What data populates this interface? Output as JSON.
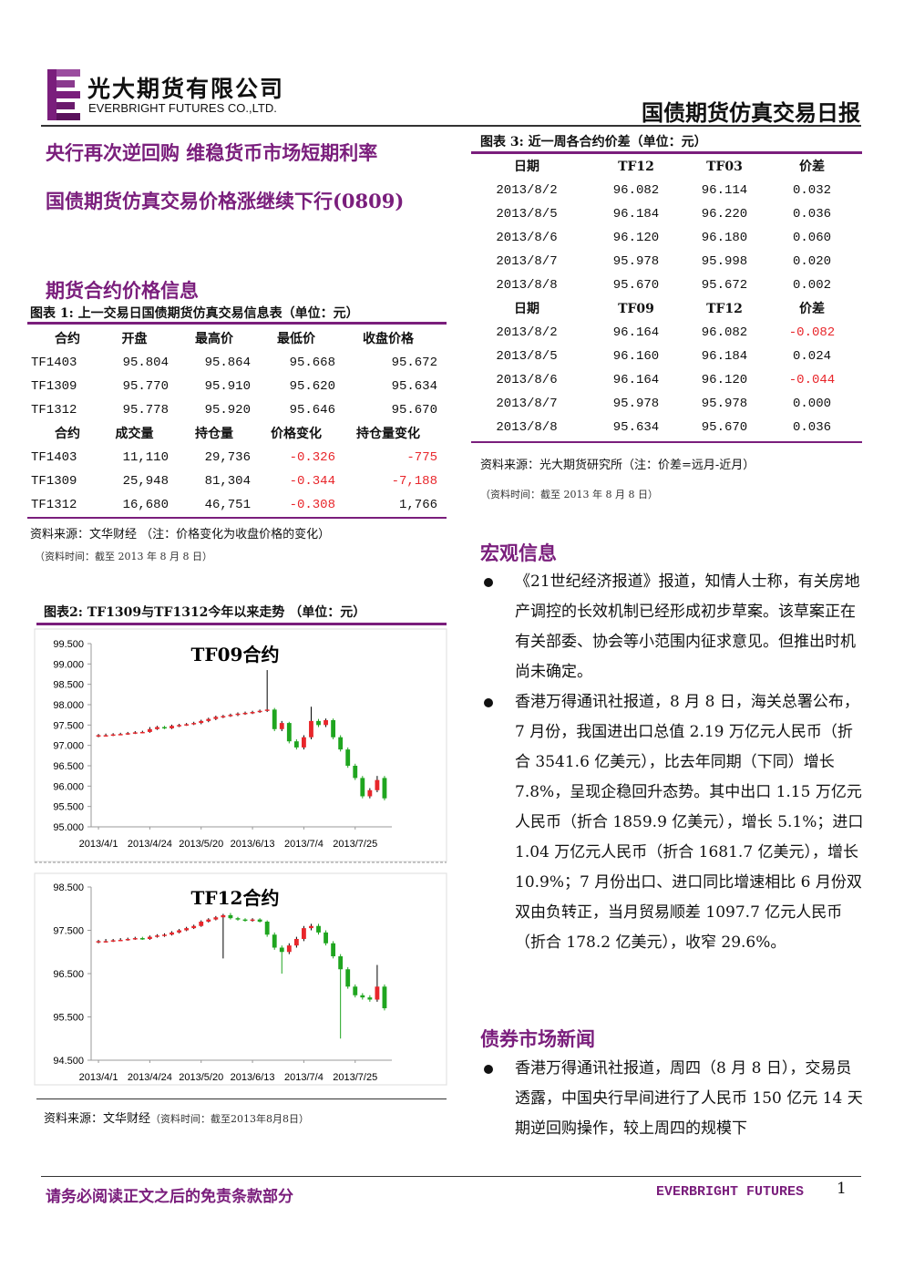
{
  "header": {
    "company_cn": "光大期货有限公司",
    "company_en": "EVERBRIGHT FUTURES CO.,LTD.",
    "report_title": "国债期货仿真交易日报"
  },
  "headlines": [
    "央行再次逆回购 维稳货币市场短期利率",
    "国债期货仿真交易价格涨继续下行(0809)"
  ],
  "section_futures": "期货合约价格信息",
  "table1": {
    "title": "图表 1: 上一交易日国债期货仿真交易信息表（单位：元）",
    "header1": [
      "合约",
      "开盘",
      "最高价",
      "最低价",
      "收盘价格"
    ],
    "rows1": [
      [
        "TF1403",
        "95.804",
        "95.864",
        "95.668",
        "95.672"
      ],
      [
        "TF1309",
        "95.770",
        "95.910",
        "95.620",
        "95.634"
      ],
      [
        "TF1312",
        "95.778",
        "95.920",
        "95.646",
        "95.670"
      ]
    ],
    "header2": [
      "合约",
      "成交量",
      "持仓量",
      "价格变化",
      "持仓量变化"
    ],
    "rows2": [
      [
        "TF1403",
        "11,110",
        "29,736",
        "-0.326",
        "-775"
      ],
      [
        "TF1309",
        "25,948",
        "81,304",
        "-0.344",
        "-7,188"
      ],
      [
        "TF1312",
        "16,680",
        "46,751",
        "-0.308",
        "1,766"
      ]
    ],
    "source": "资料来源：文华财经 （注：价格变化为收盘价格的变化）",
    "time": "（资料时间：截至 2013 年 8 月 8 日）"
  },
  "figure2": {
    "title": "图表2: TF1309与TF1312今年以来走势 （单位：元）",
    "source": "资料来源：文华财经",
    "time": "（资料时间：截至2013年8月8日）"
  },
  "chart_data": [
    {
      "type": "candlestick",
      "title": "TF09合约",
      "up_color": "#e8262b",
      "down_color": "#1fa51f",
      "xlim": [
        -1,
        40
      ],
      "ylim": [
        95,
        99.5
      ],
      "yticks": [
        {
          "value": 95,
          "label": "95.000"
        },
        {
          "value": 95.5,
          "label": "95.500"
        },
        {
          "value": 96,
          "label": "96.000"
        },
        {
          "value": 96.5,
          "label": "96.500"
        },
        {
          "value": 97,
          "label": "97.000"
        },
        {
          "value": 97.5,
          "label": "97.500"
        },
        {
          "value": 98,
          "label": "98.000"
        },
        {
          "value": 98.5,
          "label": "98.500"
        },
        {
          "value": 99,
          "label": "99.000"
        },
        {
          "value": 99.5,
          "label": "99.500"
        }
      ],
      "xticks": [
        {
          "value": 0,
          "label": "2013/4/1"
        },
        {
          "value": 7,
          "label": "2013/4/24"
        },
        {
          "value": 14,
          "label": "2013/5/20"
        },
        {
          "value": 21,
          "label": "2013/6/13"
        },
        {
          "value": 28,
          "label": "2013/7/4"
        },
        {
          "value": 35,
          "label": "2013/7/25"
        }
      ],
      "open": [
        97.22,
        97.25,
        97.25,
        97.27,
        97.28,
        97.3,
        97.32,
        97.33,
        97.4,
        97.45,
        97.42,
        97.48,
        97.5,
        97.52,
        97.55,
        97.6,
        97.65,
        97.7,
        97.72,
        97.75,
        97.78,
        97.8,
        97.82,
        97.85,
        97.88,
        97.4,
        97.55,
        97.1,
        96.95,
        97.2,
        97.6,
        97.5,
        97.62,
        97.2,
        96.9,
        96.5,
        96.2,
        95.75,
        95.9,
        96.2
      ],
      "high": [
        97.28,
        97.29,
        97.3,
        97.31,
        97.33,
        97.35,
        97.36,
        97.45,
        97.48,
        97.48,
        97.51,
        97.53,
        97.55,
        97.58,
        97.63,
        97.68,
        97.73,
        97.75,
        97.78,
        97.81,
        97.83,
        97.85,
        97.88,
        98.85,
        97.92,
        97.6,
        97.58,
        97.15,
        97.25,
        97.95,
        97.65,
        97.66,
        97.66,
        97.25,
        96.95,
        96.55,
        96.25,
        95.95,
        96.25,
        96.25
      ],
      "low": [
        97.2,
        97.22,
        97.23,
        97.25,
        97.26,
        97.28,
        97.3,
        97.31,
        97.38,
        97.4,
        97.4,
        97.45,
        97.48,
        97.5,
        97.52,
        97.57,
        97.62,
        97.67,
        97.7,
        97.72,
        97.75,
        97.77,
        97.8,
        97.82,
        97.35,
        97.35,
        97.05,
        96.9,
        96.9,
        97.15,
        97.45,
        97.45,
        97.15,
        96.85,
        96.45,
        96.15,
        95.7,
        95.7,
        95.85,
        95.65
      ],
      "close": [
        97.25,
        97.25,
        97.27,
        97.28,
        97.3,
        97.32,
        97.33,
        97.4,
        97.45,
        97.42,
        97.48,
        97.5,
        97.52,
        97.55,
        97.6,
        97.65,
        97.7,
        97.72,
        97.75,
        97.78,
        97.8,
        97.82,
        97.85,
        97.88,
        97.4,
        97.55,
        97.1,
        96.95,
        97.2,
        97.6,
        97.5,
        97.62,
        97.2,
        96.9,
        96.5,
        96.2,
        95.75,
        95.9,
        96.15,
        95.7
      ]
    },
    {
      "type": "candlestick",
      "title": "TF12合约",
      "up_color": "#e8262b",
      "down_color": "#1fa51f",
      "xlim": [
        -1,
        40
      ],
      "ylim": [
        94.5,
        98.5
      ],
      "yticks": [
        {
          "value": 94.5,
          "label": "94.500"
        },
        {
          "value": 95.5,
          "label": "95.500"
        },
        {
          "value": 96.5,
          "label": "96.500"
        },
        {
          "value": 97.5,
          "label": "97.500"
        },
        {
          "value": 98.5,
          "label": "98.500"
        }
      ],
      "xticks": [
        {
          "value": 0,
          "label": "2013/4/1"
        },
        {
          "value": 7,
          "label": "2013/4/24"
        },
        {
          "value": 14,
          "label": "2013/5/20"
        },
        {
          "value": 21,
          "label": "2013/6/13"
        },
        {
          "value": 28,
          "label": "2013/7/4"
        },
        {
          "value": 35,
          "label": "2013/7/25"
        }
      ],
      "open": [
        97.22,
        97.25,
        97.25,
        97.27,
        97.28,
        97.3,
        97.32,
        97.3,
        97.35,
        97.38,
        97.4,
        97.45,
        97.5,
        97.55,
        97.6,
        97.7,
        97.75,
        97.8,
        97.85,
        97.78,
        97.75,
        97.72,
        97.75,
        97.7,
        97.4,
        97.1,
        97.0,
        97.15,
        97.3,
        97.55,
        97.6,
        97.45,
        97.2,
        96.9,
        96.6,
        96.2,
        96.0,
        95.95,
        95.9,
        96.2
      ],
      "high": [
        97.28,
        97.3,
        97.3,
        97.32,
        97.33,
        97.35,
        97.35,
        97.38,
        97.41,
        97.43,
        97.48,
        97.53,
        97.58,
        97.63,
        97.73,
        97.78,
        97.83,
        97.88,
        97.9,
        97.81,
        97.78,
        97.78,
        97.78,
        97.73,
        97.45,
        97.15,
        97.2,
        97.35,
        97.6,
        97.65,
        97.65,
        97.5,
        97.25,
        96.95,
        96.65,
        96.25,
        96.05,
        96.0,
        96.7,
        96.25
      ],
      "low": [
        97.2,
        97.22,
        97.23,
        97.25,
        97.26,
        97.28,
        97.28,
        97.28,
        97.33,
        97.35,
        97.38,
        97.43,
        97.48,
        97.53,
        97.58,
        97.68,
        97.73,
        96.85,
        97.75,
        97.72,
        97.7,
        97.7,
        97.68,
        97.35,
        97.05,
        96.5,
        96.95,
        97.1,
        97.25,
        97.5,
        97.4,
        97.15,
        96.85,
        95.0,
        96.15,
        95.95,
        95.9,
        95.85,
        95.85,
        95.65
      ],
      "close": [
        97.25,
        97.25,
        97.27,
        97.28,
        97.3,
        97.32,
        97.3,
        97.35,
        97.38,
        97.4,
        97.45,
        97.5,
        97.55,
        97.6,
        97.7,
        97.75,
        97.8,
        97.85,
        97.78,
        97.75,
        97.72,
        97.75,
        97.7,
        97.4,
        97.1,
        97.0,
        97.15,
        97.3,
        97.55,
        97.6,
        97.45,
        97.2,
        96.9,
        96.6,
        96.2,
        96.0,
        95.95,
        95.9,
        96.2,
        95.7
      ]
    }
  ],
  "table3": {
    "title": "图表 3: 近一周各合约价差（单位：元）",
    "header1": [
      "日期",
      "TF12",
      "TF03",
      "价差"
    ],
    "rows1": [
      [
        "2013/8/2",
        "96.082",
        "96.114",
        "0.032"
      ],
      [
        "2013/8/5",
        "96.184",
        "96.220",
        "0.036"
      ],
      [
        "2013/8/6",
        "96.120",
        "96.180",
        "0.060"
      ],
      [
        "2013/8/7",
        "95.978",
        "95.998",
        "0.020"
      ],
      [
        "2013/8/8",
        "95.670",
        "95.672",
        "0.002"
      ]
    ],
    "header2": [
      "日期",
      "TF09",
      "TF12",
      "价差"
    ],
    "rows2": [
      [
        "2013/8/2",
        "96.164",
        "96.082",
        "-0.082"
      ],
      [
        "2013/8/5",
        "96.160",
        "96.184",
        "0.024"
      ],
      [
        "2013/8/6",
        "96.164",
        "96.120",
        "-0.044"
      ],
      [
        "2013/8/7",
        "95.978",
        "95.978",
        "0.000"
      ],
      [
        "2013/8/8",
        "95.634",
        "95.670",
        "0.036"
      ]
    ],
    "source": "资料来源：光大期货研究所（注：价差=远月-近月）",
    "time": "（资料时间：截至 2013 年 8 月 8 日）"
  },
  "macro": {
    "title": "宏观信息",
    "bullets": [
      "《21世纪经济报道》报道，知情人士称，有关房地产调控的长效机制已经形成初步草案。该草案正在有关部委、协会等小范围内征求意见。但推出时机尚未确定。",
      "香港万得通讯社报道，8 月 8 日，海关总署公布，7 月份，我国进出口总值 2.19 万亿元人民币（折合 3541.6 亿美元），比去年同期（下同）增长 7.8%，呈现企稳回升态势。其中出口 1.15 万亿元人民币（折合 1859.9 亿美元），增长 5.1%；进口 1.04 万亿元人民币（折合 1681.7 亿美元），增长 10.9%；7 月份出口、进口同比增速相比 6 月份双双由负转正，当月贸易顺差 1097.7 亿元人民币（折合 178.2 亿美元），收窄 29.6%。"
    ]
  },
  "bond": {
    "title": "债券市场新闻",
    "bullets": [
      "香港万得通讯社报道，周四（8 月 8 日），交易员透露，中国央行早间进行了人民币 150 亿元 14 天期逆回购操作，较上周四的规模下"
    ]
  },
  "footer": {
    "disclaimer": "请务必阅读正文之后的免责条款部分",
    "brand": "EVERBRIGHT FUTURES",
    "page": "1"
  }
}
